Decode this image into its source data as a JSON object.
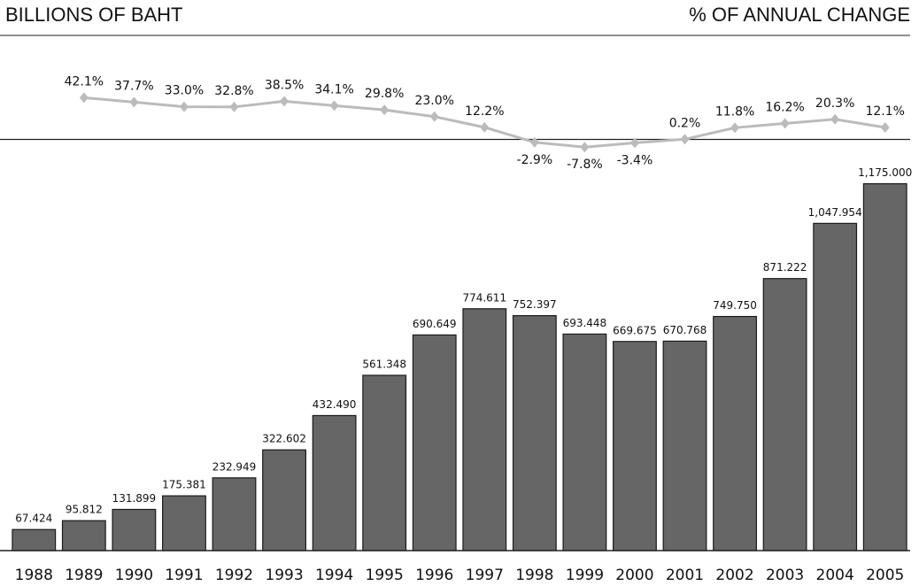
{
  "chart_data": {
    "type": "bar-line",
    "ylabel": "BILLIONS OF BAHT",
    "y2label": "% OF ANNUAL CHANGE",
    "categories": [
      "1988",
      "1989",
      "1990",
      "1991",
      "1992",
      "1993",
      "1994",
      "1995",
      "1996",
      "1997",
      "1998",
      "1999",
      "2000",
      "2001",
      "2002",
      "2003",
      "2004",
      "2005"
    ],
    "ylim": [
      0,
      1650
    ],
    "y2lim": [
      -415,
      105
    ],
    "series": [
      {
        "type": "bar",
        "color": "#666666",
        "values": [
          67.424,
          95.812,
          131.899,
          175.381,
          232.949,
          322.602,
          432.49,
          561.348,
          690.649,
          774.611,
          752.397,
          693.448,
          669.675,
          670.768,
          749.75,
          871.222,
          1047.954,
          1175.0
        ],
        "value_labels": [
          "67.424",
          "95.812",
          "131.899",
          "175.381",
          "232.949",
          "322.602",
          "432.490",
          "561.348",
          "690.649",
          "774.611",
          "752.397",
          "693.448",
          "669.675",
          "670.768",
          "749.750",
          "871.222",
          "1,047.954",
          "1,175.000"
        ]
      },
      {
        "type": "line",
        "axis": "y2",
        "color": "#bbbbbb",
        "values": [
          null,
          42.1,
          37.7,
          33.0,
          32.8,
          38.5,
          34.1,
          29.8,
          23.0,
          12.2,
          -2.9,
          -7.8,
          -3.4,
          0.2,
          11.8,
          16.2,
          20.3,
          12.1
        ],
        "value_labels": [
          null,
          "42.1%",
          "37.7%",
          "33.0%",
          "32.8%",
          "38.5%",
          "34.1%",
          "29.8%",
          "23.0%",
          "12.2%",
          "-2.9%",
          "-7.8%",
          "-3.4%",
          "0.2%",
          "11.8%",
          "16.2%",
          "20.3%",
          "12.1%"
        ]
      }
    ]
  }
}
